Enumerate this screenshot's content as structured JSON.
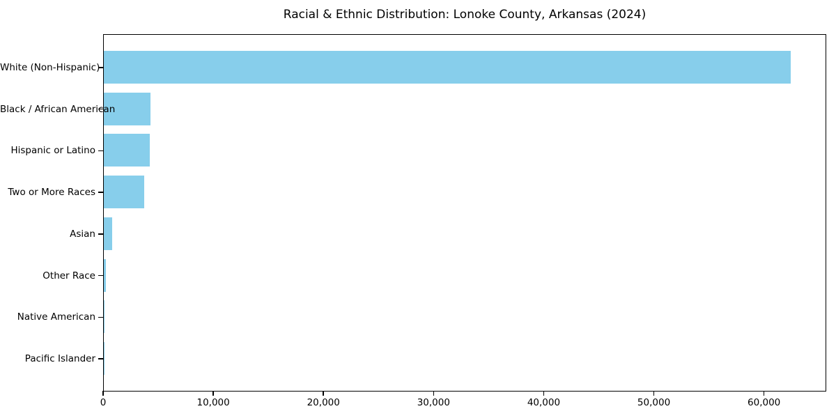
{
  "title": "Racial & Ethnic Distribution: Lonoke County, Arkansas (2024)",
  "chart_data": {
    "type": "bar",
    "orientation": "horizontal",
    "title": "Racial & Ethnic Distribution: Lonoke County, Arkansas (2024)",
    "categories": [
      "White (Non-Hispanic)",
      "Black / African American",
      "Hispanic or Latino",
      "Two or More Races",
      "Asian",
      "Other Race",
      "Native American",
      "Pacific Islander"
    ],
    "values": [
      62500,
      4220,
      4160,
      3650,
      780,
      210,
      90,
      25
    ],
    "xlabel": "",
    "ylabel": "",
    "xlim": [
      0,
      65650
    ],
    "x_ticks": [
      {
        "value": 0,
        "label": "0"
      },
      {
        "value": 10000,
        "label": "10,000"
      },
      {
        "value": 20000,
        "label": "20,000"
      },
      {
        "value": 30000,
        "label": "30,000"
      },
      {
        "value": 40000,
        "label": "40,000"
      },
      {
        "value": 50000,
        "label": "50,000"
      },
      {
        "value": 60000,
        "label": "60,000"
      }
    ],
    "bar_color": "#87CEEB",
    "background_color": "#ffffff",
    "text_color": "#000000",
    "grid": false,
    "legend": "none"
  }
}
